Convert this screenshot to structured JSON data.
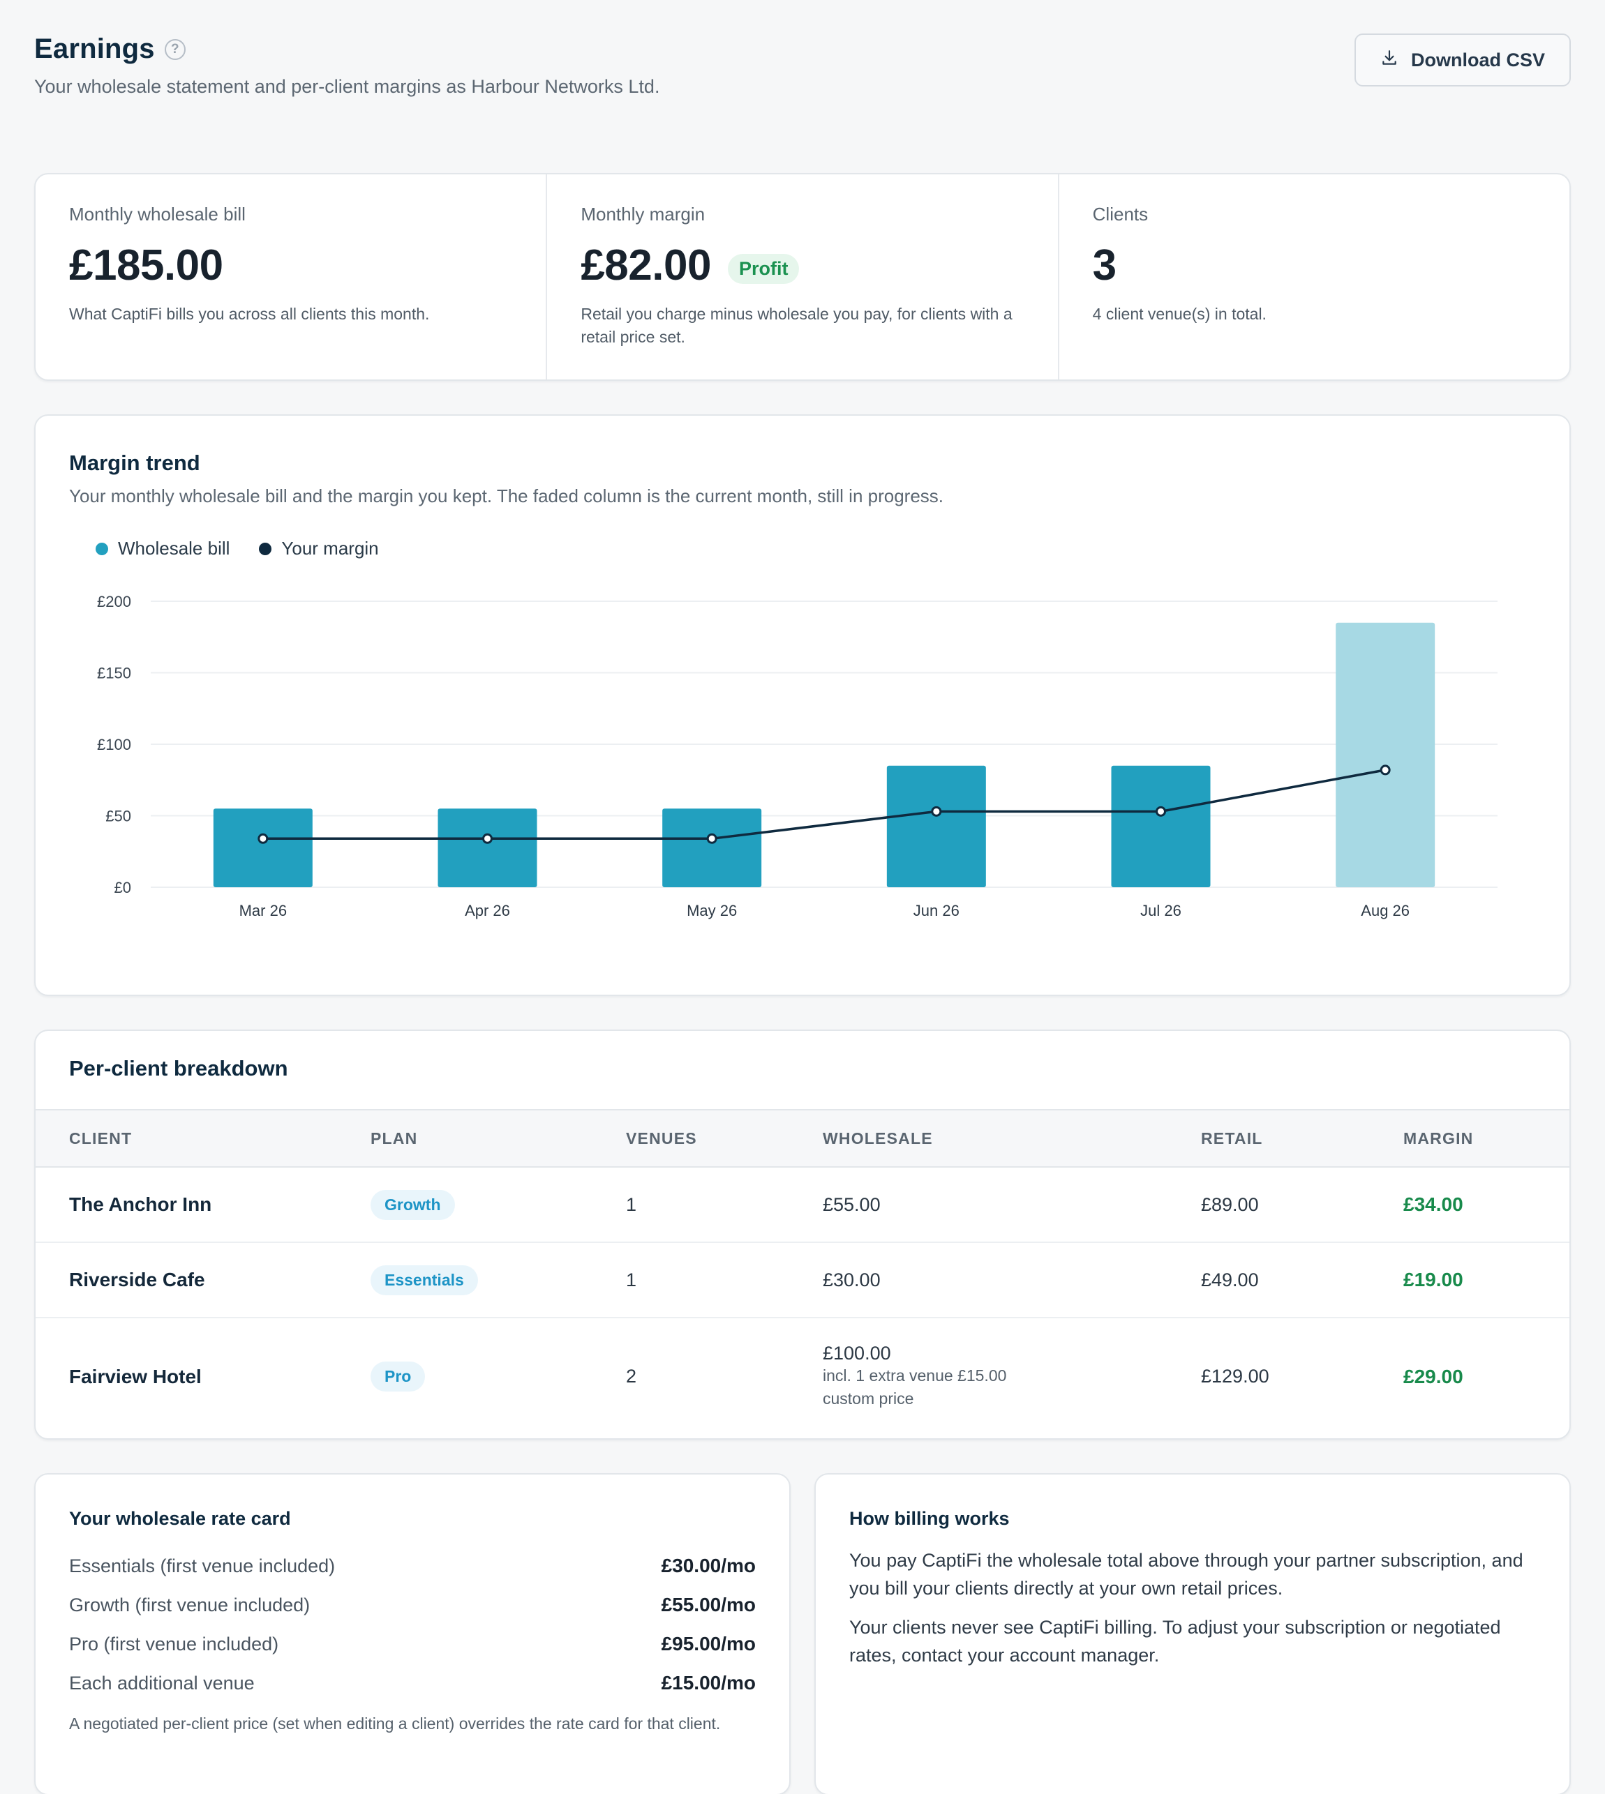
{
  "header": {
    "title": "Earnings",
    "help_icon": "?",
    "subtitle": "Your wholesale statement and per-client margins as Harbour Networks Ltd.",
    "download_label": "Download CSV"
  },
  "stats": [
    {
      "label": "Monthly wholesale bill",
      "value": "£185.00",
      "desc": "What CaptiFi bills you across all clients this month."
    },
    {
      "label": "Monthly margin",
      "value": "£82.00",
      "badge": "Profit",
      "desc": "Retail you charge minus wholesale you pay, for clients with a retail price set."
    },
    {
      "label": "Clients",
      "value": "3",
      "desc": "4 client venue(s) in total."
    }
  ],
  "trend": {
    "title": "Margin trend",
    "subtitle": "Your monthly wholesale bill and the margin you kept. The faded column is the current month, still in progress."
  },
  "chart_data": {
    "type": "bar",
    "categories": [
      "Mar 26",
      "Apr 26",
      "May 26",
      "Jun 26",
      "Jul 26",
      "Aug 26"
    ],
    "series": [
      {
        "name": "Wholesale bill",
        "kind": "bar",
        "values": [
          55,
          55,
          55,
          85,
          85,
          185
        ]
      },
      {
        "name": "Your margin",
        "kind": "line",
        "values": [
          34,
          34,
          34,
          53,
          53,
          82
        ]
      }
    ],
    "current_month_index": 5,
    "ylim": [
      0,
      200
    ],
    "yticks": [
      0,
      50,
      100,
      150,
      200
    ],
    "ytick_labels": [
      "£0",
      "£50",
      "£100",
      "£150",
      "£200"
    ],
    "grid": true,
    "legend_position": "top-left",
    "colors": {
      "bar": "#22a0bf",
      "bar_current": "#a7d9e4",
      "line": "#0f2a3f"
    }
  },
  "table": {
    "title": "Per-client breakdown",
    "columns": [
      "Client",
      "Plan",
      "Venues",
      "Wholesale",
      "Retail",
      "Margin"
    ],
    "rows": [
      {
        "client": "The Anchor Inn",
        "plan": "Growth",
        "venues": "1",
        "wholesale": "£55.00",
        "wholesale_note1": "",
        "wholesale_note2": "",
        "retail": "£89.00",
        "margin": "£34.00"
      },
      {
        "client": "Riverside Cafe",
        "plan": "Essentials",
        "venues": "1",
        "wholesale": "£30.00",
        "wholesale_note1": "",
        "wholesale_note2": "",
        "retail": "£49.00",
        "margin": "£19.00"
      },
      {
        "client": "Fairview Hotel",
        "plan": "Pro",
        "venues": "2",
        "wholesale": "£100.00",
        "wholesale_note1": "incl. 1 extra venue £15.00",
        "wholesale_note2": "custom price",
        "retail": "£129.00",
        "margin": "£29.00"
      }
    ]
  },
  "rate_card": {
    "title": "Your wholesale rate card",
    "items": [
      {
        "label": "Essentials (first venue included)",
        "value": "£30.00/mo"
      },
      {
        "label": "Growth (first venue included)",
        "value": "£55.00/mo"
      },
      {
        "label": "Pro (first venue included)",
        "value": "£95.00/mo"
      },
      {
        "label": "Each additional venue",
        "value": "£15.00/mo"
      }
    ],
    "note": "A negotiated per-client price (set when editing a client) overrides the rate card for that client."
  },
  "billing": {
    "title": "How billing works",
    "p1": "You pay CaptiFi the wholesale total above through your partner subscription, and you bill your clients directly at your own retail prices.",
    "p2": "Your clients never see CaptiFi billing. To adjust your subscription or negotiated rates, contact your account manager."
  }
}
